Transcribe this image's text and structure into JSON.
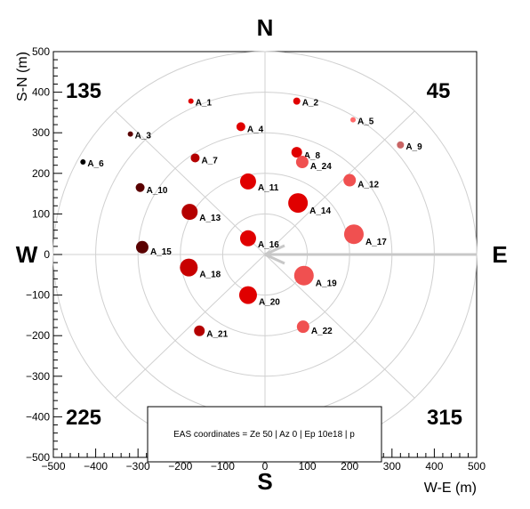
{
  "chart_data": {
    "type": "scatter",
    "xlabel": "W-E (m)",
    "ylabel": "S-N (m)",
    "xlim": [
      -500,
      500
    ],
    "ylim": [
      -500,
      500
    ],
    "x_ticks": [
      -500,
      -400,
      -300,
      -200,
      -100,
      0,
      100,
      200,
      300,
      400,
      500
    ],
    "y_ticks": [
      -500,
      -400,
      -300,
      -200,
      -100,
      0,
      100,
      200,
      300,
      400,
      500
    ],
    "polar_grid_radii": [
      100,
      200,
      300,
      400,
      500
    ],
    "polar_grid_angles_deg": [
      0,
      45,
      90,
      135,
      180,
      225,
      270,
      315
    ],
    "compass": {
      "north": "N",
      "south": "S",
      "west": "W",
      "east": "E"
    },
    "azimuth_labels": {
      "top_left": "135",
      "top_right": "45",
      "bottom_left": "225",
      "bottom_right": "315"
    },
    "info_box": "EAS coordinates =  Ze 50 | Az 0 |  Ep 10e18 | p",
    "shower_arrow": {
      "from": [
        0,
        0
      ],
      "to": [
        500,
        0
      ],
      "color": "#c8c8c8"
    },
    "stations": [
      {
        "label": "A_1",
        "x": -175,
        "y": 378,
        "size": 3,
        "color": "#e00000"
      },
      {
        "label": "A_2",
        "x": 75,
        "y": 378,
        "size": 4,
        "color": "#e00000"
      },
      {
        "label": "A_3",
        "x": -318,
        "y": 297,
        "size": 3,
        "color": "#5a0000"
      },
      {
        "label": "A_4",
        "x": -57,
        "y": 315,
        "size": 5,
        "color": "#e00000"
      },
      {
        "label": "A_5",
        "x": 208,
        "y": 332,
        "size": 3,
        "color": "#ff6a6a"
      },
      {
        "label": "A_6",
        "x": -430,
        "y": 228,
        "size": 3,
        "color": "#000000"
      },
      {
        "label": "A_7",
        "x": -165,
        "y": 238,
        "size": 5,
        "color": "#b40000"
      },
      {
        "label": "A_8",
        "x": 75,
        "y": 252,
        "size": 6,
        "color": "#e00000"
      },
      {
        "label": "A_9",
        "x": 320,
        "y": 270,
        "size": 4,
        "color": "#c86464"
      },
      {
        "label": "A_10",
        "x": -295,
        "y": 165,
        "size": 5,
        "color": "#5a0000"
      },
      {
        "label": "A_11",
        "x": -40,
        "y": 180,
        "size": 9,
        "color": "#e00000"
      },
      {
        "label": "A_12",
        "x": 200,
        "y": 183,
        "size": 7,
        "color": "#f05050"
      },
      {
        "label": "A_13",
        "x": -178,
        "y": 105,
        "size": 9,
        "color": "#b40000"
      },
      {
        "label": "A_14",
        "x": 78,
        "y": 127,
        "size": 11,
        "color": "#e00000"
      },
      {
        "label": "A_15",
        "x": -290,
        "y": 18,
        "size": 7,
        "color": "#5a0000"
      },
      {
        "label": "A_16",
        "x": -40,
        "y": 40,
        "size": 9,
        "color": "#e00000"
      },
      {
        "label": "A_17",
        "x": 210,
        "y": 50,
        "size": 11,
        "color": "#f05050"
      },
      {
        "label": "A_18",
        "x": -180,
        "y": -32,
        "size": 10,
        "color": "#c80000"
      },
      {
        "label": "A_19",
        "x": 92,
        "y": -52,
        "size": 11,
        "color": "#f05050"
      },
      {
        "label": "A_20",
        "x": -40,
        "y": -100,
        "size": 10,
        "color": "#e00000"
      },
      {
        "label": "A_21",
        "x": -155,
        "y": -188,
        "size": 6,
        "color": "#b40000"
      },
      {
        "label": "A_22",
        "x": 90,
        "y": -178,
        "size": 7,
        "color": "#f05050"
      },
      {
        "label": "A_24",
        "x": 88,
        "y": 228,
        "size": 7,
        "color": "#f05050"
      }
    ]
  }
}
